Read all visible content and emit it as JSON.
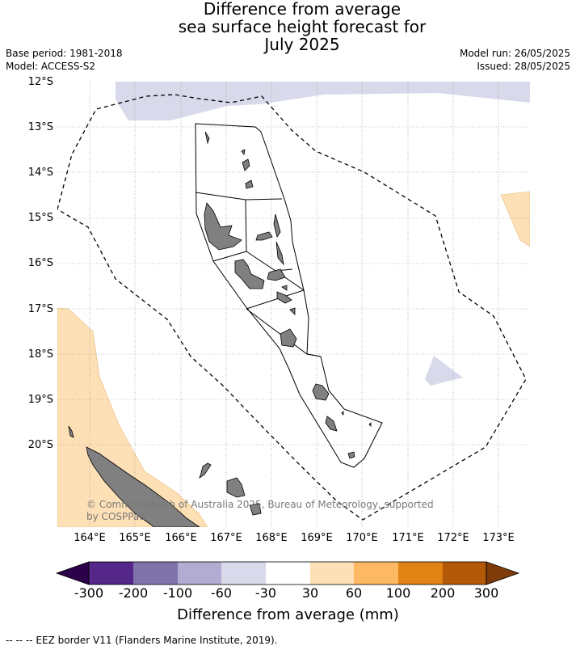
{
  "title": {
    "line1": "Difference from average",
    "line2": "sea surface height forecast for",
    "line3": "July 2025"
  },
  "meta_left": {
    "base_period": "Base period: 1981-2018",
    "model": "Model: ACCESS-S2"
  },
  "meta_right": {
    "model_run": "Model run: 26/05/2025",
    "issued": "Issued: 28/05/2025"
  },
  "axes": {
    "lat_labels": [
      "12°S",
      "13°S",
      "14°S",
      "15°S",
      "16°S",
      "17°S",
      "18°S",
      "19°S",
      "20°S"
    ],
    "lon_labels": [
      "164°E",
      "165°E",
      "166°E",
      "167°E",
      "168°E",
      "169°E",
      "170°E",
      "171°E",
      "172°E",
      "173°E"
    ]
  },
  "colorbar": {
    "title": "Difference from average (mm)",
    "tick_labels": [
      "-300",
      "-200",
      "-100",
      "-60",
      "-30",
      "30",
      "60",
      "100",
      "200",
      "300"
    ],
    "colors": {
      "below_min": "#2d004b",
      "c1": "#542788",
      "c2": "#8073ac",
      "c3": "#b2abd2",
      "c4": "#d8daeb",
      "c5": "#ffffff",
      "c6": "#fee0b6",
      "c7": "#fdb863",
      "c8": "#e08214",
      "c9": "#b35806",
      "above_max": "#7f3b08"
    }
  },
  "copyright": {
    "line1": "© Commonwealth of Australia 2025, Bureau of Meteorology, supported",
    "line2": "by COSPPac"
  },
  "footer": "--  --  -- EEZ border V11 (Flanders Marine Institute, 2019).",
  "colors": {
    "land": "#808080",
    "neg_anomaly": "#d8daeb",
    "pos_anomaly": "#fee0b6",
    "gridline": "#888888"
  }
}
